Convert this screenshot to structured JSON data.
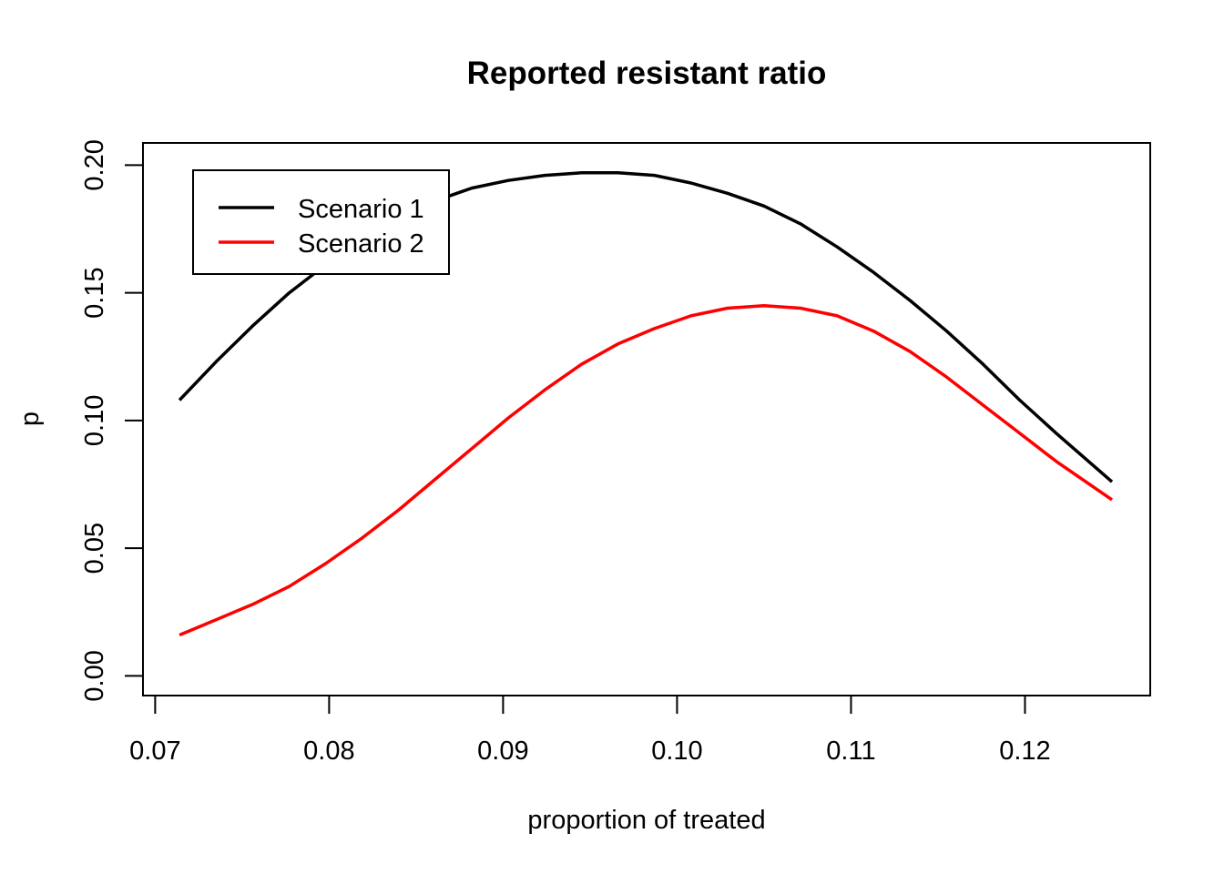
{
  "chart_data": {
    "type": "line",
    "title": "Reported resistant ratio",
    "xlabel": "proportion of treated",
    "ylabel": "p",
    "xlim": [
      0.0693,
      0.1272
    ],
    "ylim": [
      -0.0077,
      0.2087
    ],
    "x_ticks": [
      "0.07",
      "0.08",
      "0.09",
      "0.10",
      "0.11",
      "0.12"
    ],
    "y_ticks": [
      "0.00",
      "0.05",
      "0.10",
      "0.15",
      "0.20"
    ],
    "grid": false,
    "legend_position": "top-left",
    "series": [
      {
        "name": "Scenario 1",
        "color": "#000000",
        "x": [
          0.0714,
          0.0735,
          0.0756,
          0.0777,
          0.0798,
          0.0819,
          0.084,
          0.0861,
          0.0882,
          0.0903,
          0.0924,
          0.0945,
          0.0966,
          0.0987,
          0.1008,
          0.1029,
          0.105,
          0.1071,
          0.1092,
          0.1113,
          0.1134,
          0.1155,
          0.1176,
          0.1197,
          0.1218,
          0.125
        ],
        "y": [
          0.108,
          0.123,
          0.137,
          0.15,
          0.161,
          0.171,
          0.179,
          0.186,
          0.191,
          0.194,
          0.196,
          0.197,
          0.197,
          0.196,
          0.193,
          0.189,
          0.184,
          0.177,
          0.168,
          0.158,
          0.147,
          0.135,
          0.122,
          0.108,
          0.095,
          0.076
        ]
      },
      {
        "name": "Scenario 2",
        "color": "#ff0000",
        "x": [
          0.0714,
          0.0735,
          0.0756,
          0.0777,
          0.0798,
          0.0819,
          0.084,
          0.0861,
          0.0882,
          0.0903,
          0.0924,
          0.0945,
          0.0966,
          0.0987,
          0.1008,
          0.1029,
          0.105,
          0.1071,
          0.1092,
          0.1113,
          0.1134,
          0.1155,
          0.1176,
          0.1197,
          0.1218,
          0.125
        ],
        "y": [
          0.016,
          0.022,
          0.028,
          0.035,
          0.044,
          0.054,
          0.065,
          0.077,
          0.089,
          0.101,
          0.112,
          0.122,
          0.13,
          0.136,
          0.141,
          0.144,
          0.145,
          0.144,
          0.141,
          0.135,
          0.127,
          0.117,
          0.106,
          0.095,
          0.084,
          0.069
        ]
      }
    ]
  }
}
